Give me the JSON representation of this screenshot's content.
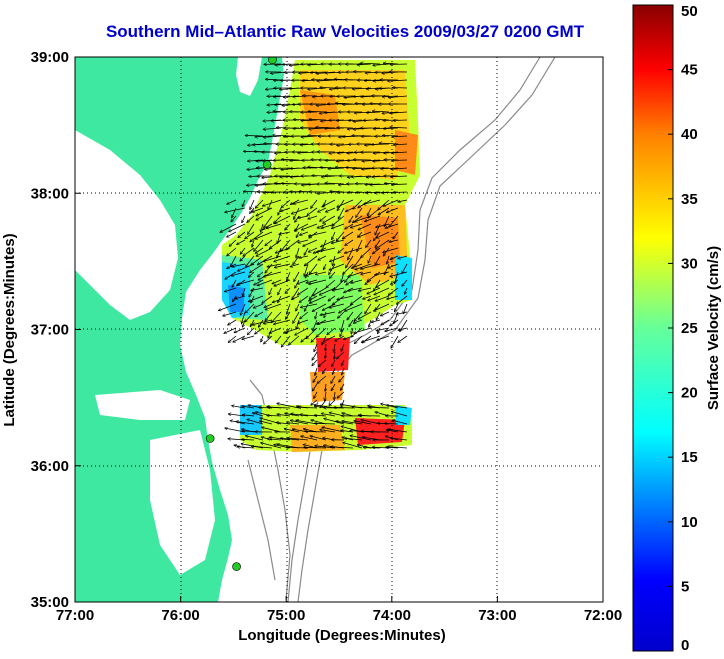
{
  "title": "Southern Mid–Atlantic Raw Velocities 2009/03/27 0200 GMT",
  "map": {
    "xlabel": "Longitude (Degrees:Minutes)",
    "ylabel": "Latitude (Degrees:Minutes)",
    "lon_ticks": [
      {
        "value": -77,
        "label": "77:00"
      },
      {
        "value": -76,
        "label": "76:00"
      },
      {
        "value": -75,
        "label": "75:00"
      },
      {
        "value": -74,
        "label": "74:00"
      },
      {
        "value": -73,
        "label": "73:00"
      },
      {
        "value": -72,
        "label": "72:00"
      }
    ],
    "lat_ticks": [
      {
        "value": 39,
        "label": "39:00"
      },
      {
        "value": 38,
        "label": "38:00"
      },
      {
        "value": 37,
        "label": "37:00"
      },
      {
        "value": 36,
        "label": "36:00"
      },
      {
        "value": 35,
        "label": "35:00"
      }
    ],
    "lon_range": [
      -77,
      -72
    ],
    "lat_range": [
      35,
      39
    ],
    "grid": "dotted",
    "colors": {
      "land": "#3ee8a0",
      "water": "#ffffff",
      "bathymetry": "#888888",
      "station": "#22cc22",
      "arrows": "#000000",
      "title": "#0000cc"
    }
  },
  "colorbar": {
    "label": "Surface Velocity (cm/s)",
    "ticks": [
      {
        "value": 0,
        "label": "0"
      },
      {
        "value": 5,
        "label": "5"
      },
      {
        "value": 10,
        "label": "10"
      },
      {
        "value": 15,
        "label": "15"
      },
      {
        "value": 20,
        "label": "20"
      },
      {
        "value": 25,
        "label": "25"
      },
      {
        "value": 30,
        "label": "30"
      },
      {
        "value": 35,
        "label": "35"
      },
      {
        "value": 40,
        "label": "40"
      },
      {
        "value": 45,
        "label": "45"
      },
      {
        "value": 50,
        "label": "50"
      }
    ],
    "range": [
      0,
      50
    ],
    "colormap": "jet"
  },
  "stations": [
    {
      "lon": -75.13,
      "lat": 38.98
    },
    {
      "lon": -75.18,
      "lat": 38.21
    },
    {
      "lon": -75.72,
      "lat": 36.2
    },
    {
      "lon": -75.47,
      "lat": 35.26
    }
  ]
}
